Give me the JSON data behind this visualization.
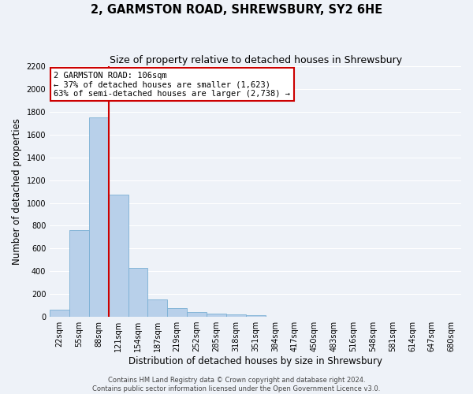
{
  "title": "2, GARMSTON ROAD, SHREWSBURY, SY2 6HE",
  "subtitle": "Size of property relative to detached houses in Shrewsbury",
  "xlabel": "Distribution of detached houses by size in Shrewsbury",
  "ylabel": "Number of detached properties",
  "bar_values": [
    60,
    760,
    1750,
    1075,
    430,
    155,
    80,
    45,
    30,
    20,
    15,
    0,
    0,
    0,
    0,
    0,
    0,
    0,
    0,
    0,
    0
  ],
  "bin_labels": [
    "22sqm",
    "55sqm",
    "88sqm",
    "121sqm",
    "154sqm",
    "187sqm",
    "219sqm",
    "252sqm",
    "285sqm",
    "318sqm",
    "351sqm",
    "384sqm",
    "417sqm",
    "450sqm",
    "483sqm",
    "516sqm",
    "548sqm",
    "581sqm",
    "614sqm",
    "647sqm",
    "680sqm"
  ],
  "bar_color": "#b8d0ea",
  "bar_edge_color": "#7aafd4",
  "vline_bin_index": 2,
  "vline_color": "#cc0000",
  "annotation_text_line1": "2 GARMSTON ROAD: 106sqm",
  "annotation_text_line2": "← 37% of detached houses are smaller (1,623)",
  "annotation_text_line3": "63% of semi-detached houses are larger (2,738) →",
  "ylim": [
    0,
    2200
  ],
  "yticks": [
    0,
    200,
    400,
    600,
    800,
    1000,
    1200,
    1400,
    1600,
    1800,
    2000,
    2200
  ],
  "footer_line1": "Contains HM Land Registry data © Crown copyright and database right 2024.",
  "footer_line2": "Contains public sector information licensed under the Open Government Licence v3.0.",
  "bg_color": "#eef2f8",
  "grid_color": "#ffffff",
  "title_fontsize": 10.5,
  "subtitle_fontsize": 9,
  "axis_label_fontsize": 8.5,
  "tick_fontsize": 7,
  "annotation_fontsize": 7.5,
  "footer_fontsize": 6
}
